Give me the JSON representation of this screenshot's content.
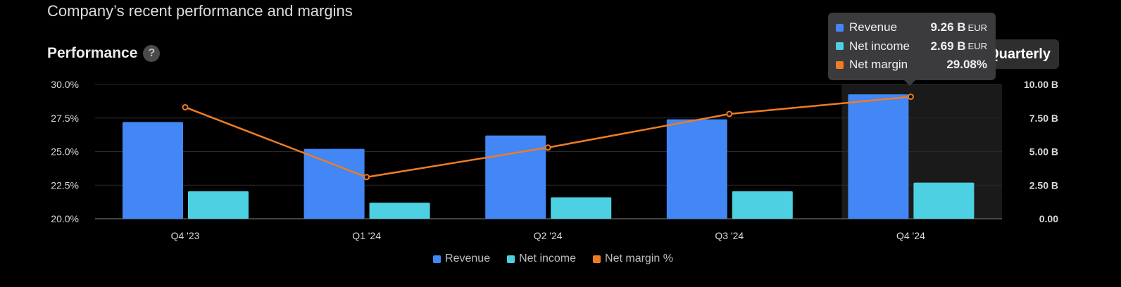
{
  "header": {
    "section_title": "Company’s recent performance and margins",
    "performance_title": "Performance",
    "help_icon": "?",
    "period_label": "Quarterly"
  },
  "colors": {
    "revenue": "#4287f5",
    "net_income": "#4dd0e1",
    "net_margin": "#f07c22",
    "grid": "#2a2a2a",
    "highlight": "#1a1a1a"
  },
  "tooltip": {
    "rows": [
      {
        "label": "Revenue",
        "value": "9.26 B",
        "unit": "EUR",
        "color": "#4287f5"
      },
      {
        "label": "Net income",
        "value": "2.69 B",
        "unit": "EUR",
        "color": "#4dd0e1"
      },
      {
        "label": "Net margin",
        "value": "29.08%",
        "unit": "",
        "color": "#f07c22"
      }
    ]
  },
  "legend": [
    {
      "label": "Revenue",
      "color": "#4287f5"
    },
    {
      "label": "Net income",
      "color": "#4dd0e1"
    },
    {
      "label": "Net margin %",
      "color": "#f07c22"
    }
  ],
  "chart_data": {
    "type": "bar",
    "categories": [
      "Q4 '23",
      "Q1 '24",
      "Q2 '24",
      "Q3 '24",
      "Q4 '24"
    ],
    "series": [
      {
        "name": "Revenue",
        "axis": "right",
        "values": [
          7.2,
          5.2,
          6.2,
          7.4,
          9.26
        ]
      },
      {
        "name": "Net income",
        "axis": "right",
        "values": [
          2.05,
          1.2,
          1.6,
          2.05,
          2.69
        ]
      },
      {
        "name": "Net margin %",
        "type": "line",
        "axis": "left",
        "values": [
          28.3,
          23.1,
          25.3,
          27.8,
          29.08
        ]
      }
    ],
    "y_left": {
      "min": 20,
      "max": 30,
      "ticks": [
        "30.0%",
        "27.5%",
        "25.0%",
        "22.5%",
        "20.0%"
      ]
    },
    "y_right": {
      "min": 0,
      "max": 10,
      "ticks": [
        "10.00 B",
        "7.50 B",
        "5.00 B",
        "2.50 B",
        "0.00"
      ]
    },
    "highlighted_category": "Q4 '24",
    "grid": true,
    "legend_position": "bottom"
  }
}
